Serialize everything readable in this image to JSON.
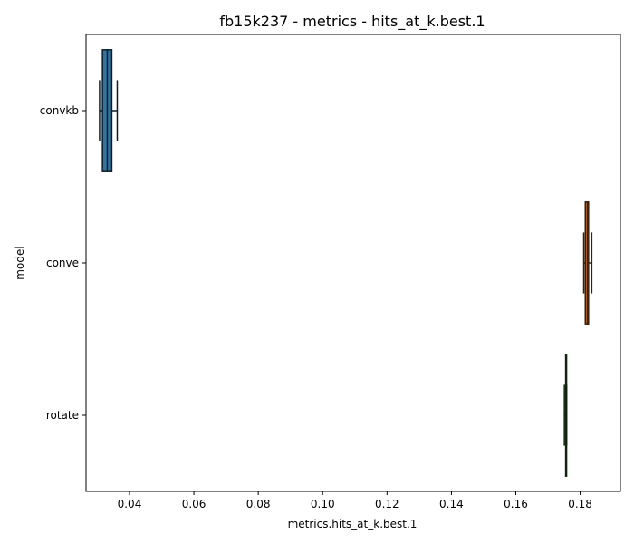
{
  "chart_data": {
    "type": "boxplot",
    "orientation": "horizontal",
    "title": "fb15k237 - metrics - hits_at_k.best.1",
    "xlabel": "metrics.hits_at_k.best.1",
    "ylabel": "model",
    "xlim": [
      0.0265,
      0.1925
    ],
    "xticks": [
      0.04,
      0.06,
      0.08,
      0.1,
      0.12,
      0.14,
      0.16,
      0.18
    ],
    "xtick_labels": [
      "0.04",
      "0.06",
      "0.08",
      "0.10",
      "0.12",
      "0.14",
      "0.16",
      "0.18"
    ],
    "grid": false,
    "categories": [
      "convkb",
      "conve",
      "rotate"
    ],
    "boxes": [
      {
        "category": "convkb",
        "whisker_low": 0.0307,
        "q1": 0.0316,
        "median": 0.0331,
        "q3": 0.0345,
        "whisker_high": 0.0362,
        "color": "#3274a1"
      },
      {
        "category": "conve",
        "whisker_low": 0.1811,
        "q1": 0.1816,
        "median": 0.1822,
        "q3": 0.1826,
        "whisker_high": 0.1836,
        "color": "#e1812c"
      },
      {
        "category": "rotate",
        "whisker_low": 0.1751,
        "q1": 0.1755,
        "median": 0.1756,
        "q3": 0.1757,
        "whisker_high": 0.1758,
        "color": "#3a923a"
      }
    ]
  }
}
